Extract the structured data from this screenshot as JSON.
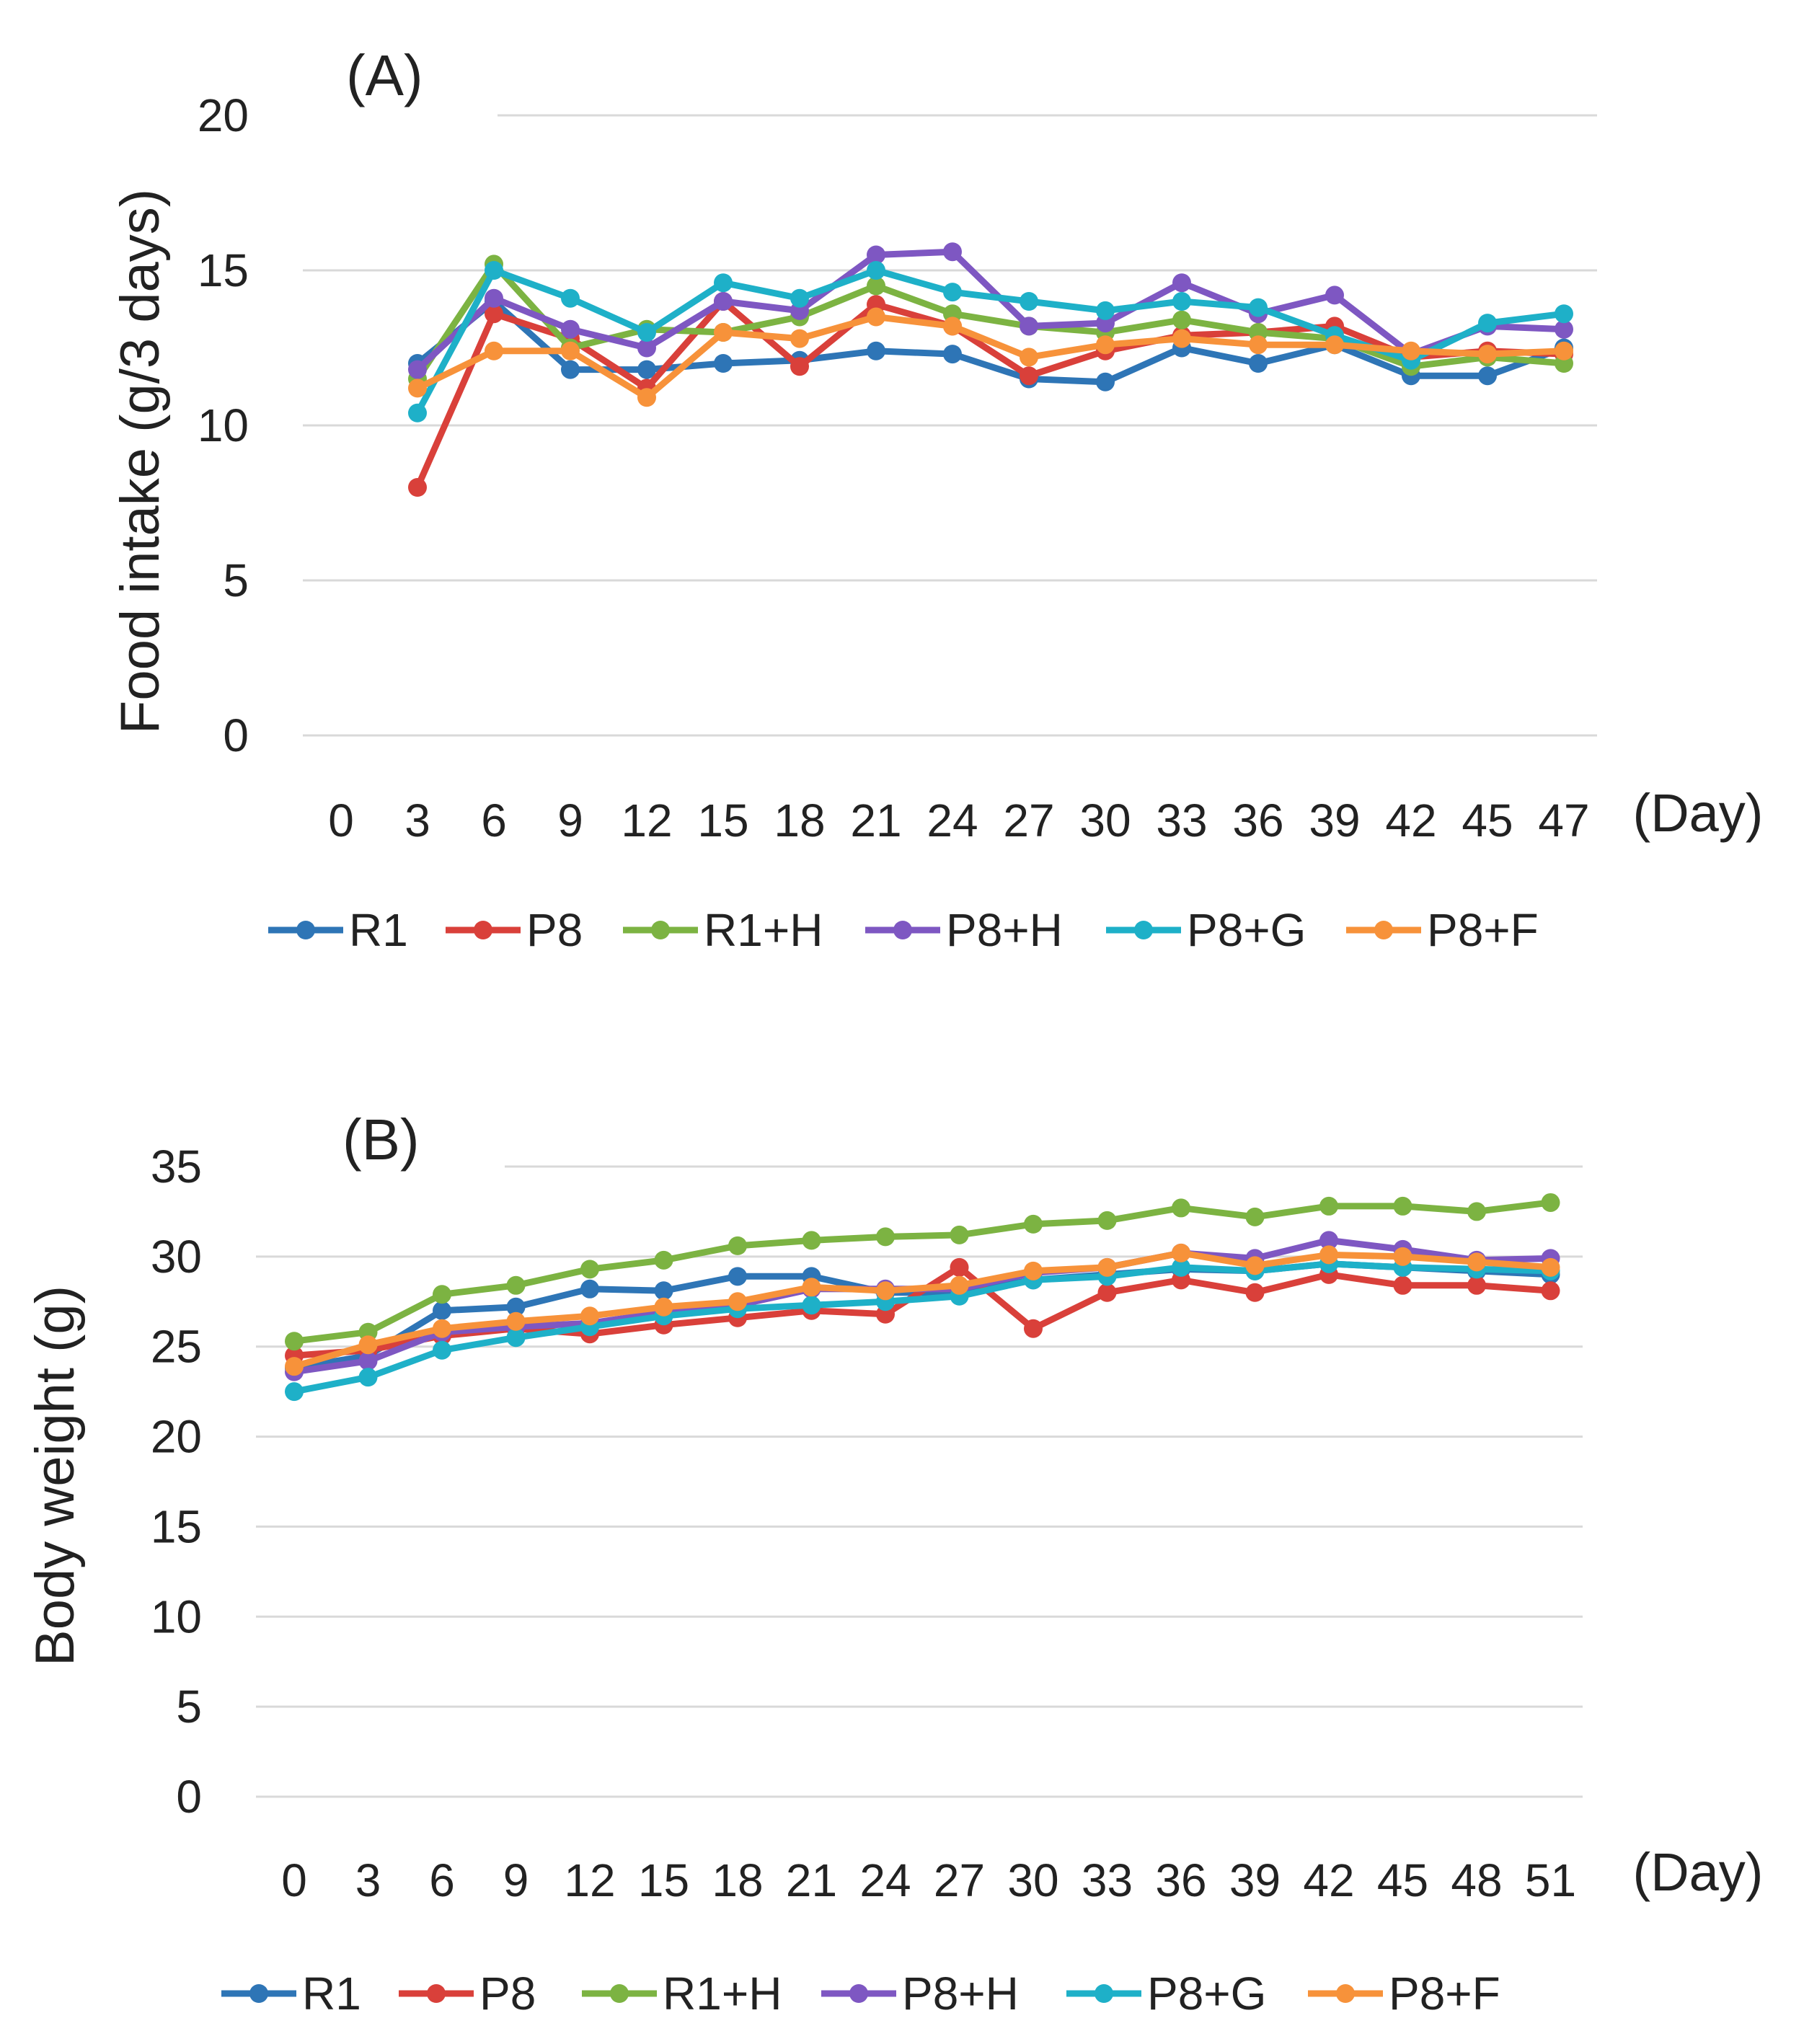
{
  "legend_labels": [
    "R1",
    "P8",
    "R1+H",
    "P8+H",
    "P8+G",
    "P8+F"
  ],
  "chart_data": [
    {
      "type": "line",
      "panel_label": "(A)",
      "title": "",
      "xlabel": "(Day)",
      "ylabel": "Food intake  (g/3 days)",
      "ylim": [
        0,
        20
      ],
      "yticks": [
        "0",
        "5",
        "10",
        "15",
        "20"
      ],
      "categories": [
        "0",
        "3",
        "6",
        "9",
        "12",
        "15",
        "18",
        "21",
        "24",
        "27",
        "30",
        "33",
        "36",
        "39",
        "42",
        "45",
        "47"
      ],
      "series": [
        {
          "name": "R1",
          "color": "#2E75B6",
          "values": [
            null,
            12.0,
            14.0,
            11.8,
            11.8,
            12.0,
            12.1,
            12.4,
            12.3,
            11.5,
            11.4,
            12.5,
            12.0,
            12.6,
            11.6,
            11.6,
            12.5
          ]
        },
        {
          "name": "P8",
          "color": "#D9403A",
          "values": [
            null,
            8.0,
            13.6,
            12.8,
            11.2,
            14.0,
            11.9,
            13.9,
            13.2,
            11.6,
            12.4,
            12.9,
            13.0,
            13.2,
            12.2,
            12.4,
            12.3
          ]
        },
        {
          "name": "R1+H",
          "color": "#7CB342",
          "values": [
            null,
            11.5,
            15.2,
            12.5,
            13.1,
            13.0,
            13.5,
            14.5,
            13.6,
            13.2,
            13.0,
            13.4,
            13.0,
            12.8,
            11.9,
            12.2,
            12.0
          ]
        },
        {
          "name": "P8+H",
          "color": "#7E57C2",
          "values": [
            null,
            11.8,
            14.1,
            13.1,
            12.5,
            14.0,
            13.7,
            15.5,
            15.6,
            13.2,
            13.3,
            14.6,
            13.6,
            14.2,
            12.3,
            13.2,
            13.1
          ]
        },
        {
          "name": "P8+G",
          "color": "#1EB0C8",
          "values": [
            null,
            10.4,
            15.0,
            14.1,
            13.0,
            14.6,
            14.1,
            15.0,
            14.3,
            14.0,
            13.7,
            14.0,
            13.8,
            12.9,
            12.1,
            13.3,
            13.6
          ]
        },
        {
          "name": "P8+F",
          "color": "#F7923A",
          "values": [
            null,
            11.2,
            12.4,
            12.4,
            10.9,
            13.0,
            12.8,
            13.5,
            13.2,
            12.2,
            12.6,
            12.8,
            12.6,
            12.6,
            12.4,
            12.3,
            12.4
          ]
        }
      ],
      "legend": "bottom"
    },
    {
      "type": "line",
      "panel_label": "(B)",
      "title": "",
      "xlabel": "(Day)",
      "ylabel": "Body weight  (g)",
      "ylim": [
        0,
        35
      ],
      "yticks": [
        "0",
        "5",
        "10",
        "15",
        "20",
        "25",
        "30",
        "35"
      ],
      "categories": [
        "0",
        "3",
        "6",
        "9",
        "12",
        "15",
        "18",
        "21",
        "24",
        "27",
        "30",
        "33",
        "36",
        "39",
        "42",
        "45",
        "48",
        "51"
      ],
      "series": [
        {
          "name": "R1",
          "color": "#2E75B6",
          "values": [
            23.8,
            24.5,
            27.0,
            27.2,
            28.2,
            28.1,
            28.9,
            28.9,
            28.0,
            28.0,
            28.7,
            29.0,
            29.3,
            29.2,
            29.6,
            29.4,
            29.2,
            29.0
          ]
        },
        {
          "name": "P8",
          "color": "#D9403A",
          "values": [
            24.5,
            24.8,
            25.6,
            26.0,
            25.7,
            26.2,
            26.6,
            27.0,
            26.8,
            29.4,
            26.0,
            28.0,
            28.7,
            28.0,
            29.0,
            28.4,
            28.4,
            28.1
          ]
        },
        {
          "name": "R1+H",
          "color": "#7CB342",
          "values": [
            25.3,
            25.8,
            27.9,
            28.4,
            29.3,
            29.8,
            30.6,
            30.9,
            31.1,
            31.2,
            31.8,
            32.0,
            32.7,
            32.2,
            32.8,
            32.8,
            32.5,
            33.0
          ]
        },
        {
          "name": "P8+H",
          "color": "#7E57C2",
          "values": [
            23.6,
            24.2,
            25.8,
            26.1,
            26.3,
            26.9,
            27.3,
            28.2,
            28.2,
            28.2,
            29.1,
            29.4,
            30.2,
            29.9,
            30.9,
            30.4,
            29.8,
            29.9
          ]
        },
        {
          "name": "P8+G",
          "color": "#1EB0C8",
          "values": [
            22.5,
            23.3,
            24.8,
            25.5,
            26.1,
            26.7,
            27.1,
            27.3,
            27.5,
            27.8,
            28.7,
            28.9,
            29.4,
            29.2,
            29.6,
            29.4,
            29.3,
            29.2
          ]
        },
        {
          "name": "P8+F",
          "color": "#F7923A",
          "values": [
            23.9,
            25.1,
            26.0,
            26.4,
            26.7,
            27.2,
            27.5,
            28.3,
            28.1,
            28.4,
            29.2,
            29.4,
            30.2,
            29.5,
            30.1,
            30.0,
            29.7,
            29.4
          ]
        }
      ],
      "legend": "bottom"
    }
  ]
}
